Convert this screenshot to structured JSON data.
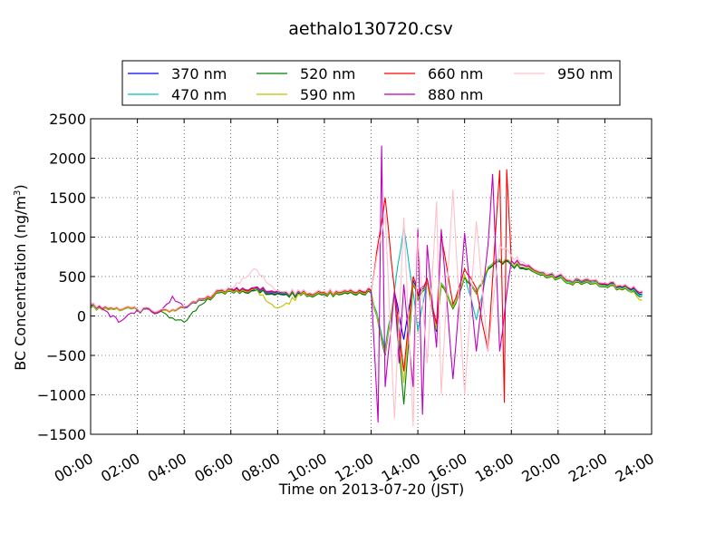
{
  "chart_data": {
    "type": "line",
    "title": "aethalo130720.csv",
    "xlabel": "Time on 2013-07-20 (JST)",
    "ylabel": "BC Concentration (ng/m",
    "ylabel_sup": "3",
    "ylabel_tail": ")",
    "xlim": [
      "00:00",
      "24:00"
    ],
    "ylim": [
      -1500,
      2500
    ],
    "x_ticks": [
      "00:00",
      "02:00",
      "04:00",
      "06:00",
      "08:00",
      "10:00",
      "12:00",
      "14:00",
      "16:00",
      "18:00",
      "20:00",
      "22:00",
      "24:00"
    ],
    "y_ticks": [
      "2500",
      "2000",
      "1500",
      "1000",
      "500",
      "0",
      "−500",
      "−1000",
      "−1500"
    ],
    "grid": true,
    "legend_position": "top",
    "x_units": "hours",
    "series": [
      {
        "name": "370 nm",
        "color": "#0000ff",
        "x": [
          0,
          1,
          2,
          3,
          4,
          5,
          6,
          7,
          8,
          9,
          10,
          11,
          12,
          12.6,
          13,
          13.4,
          13.8,
          14,
          14.4,
          14.8,
          15,
          15.5,
          16,
          16.5,
          17,
          17.5,
          18,
          19,
          20,
          21,
          22,
          23,
          23.6
        ],
        "y": [
          120,
          90,
          80,
          70,
          100,
          230,
          320,
          330,
          290,
          270,
          280,
          290,
          300,
          -500,
          300,
          -300,
          450,
          250,
          450,
          -200,
          400,
          100,
          500,
          300,
          600,
          700,
          650,
          560,
          500,
          420,
          400,
          350,
          280
        ]
      },
      {
        "name": "470 nm",
        "color": "#00bfbf",
        "x": [
          0,
          1,
          2,
          3,
          4,
          5,
          6,
          7,
          8,
          9,
          10,
          11,
          12,
          12.6,
          13,
          13.4,
          13.8,
          14,
          14.4,
          14.8,
          15,
          15.5,
          16,
          16.5,
          17,
          17.5,
          18,
          19,
          20,
          21,
          22,
          23,
          23.6
        ],
        "y": [
          110,
          85,
          80,
          75,
          110,
          240,
          330,
          340,
          300,
          280,
          290,
          300,
          310,
          -400,
          320,
          1130,
          300,
          -200,
          480,
          -150,
          420,
          120,
          520,
          -50,
          620,
          720,
          660,
          570,
          490,
          430,
          390,
          340,
          270
        ]
      },
      {
        "name": "520 nm",
        "color": "#007f00",
        "x": [
          0,
          1,
          2,
          3,
          4,
          5,
          6,
          7,
          8,
          9,
          10,
          11,
          12,
          12.6,
          13,
          13.4,
          13.8,
          14,
          14.4,
          14.8,
          15,
          15.5,
          16,
          16.5,
          17,
          17.5,
          18,
          19,
          20,
          21,
          22,
          23,
          23.6
        ],
        "y": [
          100,
          80,
          70,
          60,
          -80,
          220,
          310,
          320,
          280,
          260,
          270,
          280,
          290,
          -450,
          310,
          -1120,
          400,
          200,
          430,
          -180,
          390,
          90,
          490,
          280,
          590,
          690,
          640,
          550,
          470,
          400,
          370,
          320,
          250
        ]
      },
      {
        "name": "590 nm",
        "color": "#bfbf00",
        "x": [
          0,
          1,
          2,
          3,
          4,
          5,
          6,
          7,
          8,
          9,
          10,
          11,
          12,
          12.6,
          13,
          13.4,
          13.8,
          14,
          14.4,
          14.8,
          15,
          15.5,
          16,
          16.5,
          17,
          17.5,
          18,
          19,
          20,
          21,
          22,
          23,
          23.6
        ],
        "y": [
          105,
          82,
          75,
          65,
          105,
          235,
          320,
          340,
          100,
          270,
          285,
          295,
          305,
          -480,
          315,
          -850,
          420,
          220,
          440,
          -170,
          410,
          110,
          510,
          290,
          610,
          710,
          670,
          560,
          480,
          410,
          380,
          330,
          200
        ]
      },
      {
        "name": "660 nm",
        "color": "#ff0000",
        "x": [
          0,
          1,
          2,
          3,
          4,
          5,
          6,
          7,
          8,
          9,
          10,
          11,
          12,
          12.6,
          13,
          13.4,
          13.8,
          14,
          14.4,
          14.8,
          15,
          15.5,
          16,
          16.5,
          17,
          17.5,
          17.7,
          17.8,
          18,
          19,
          20,
          21,
          22,
          23,
          23.6
        ],
        "y": [
          130,
          95,
          85,
          80,
          115,
          250,
          340,
          350,
          310,
          290,
          300,
          310,
          320,
          1500,
          330,
          -700,
          500,
          280,
          470,
          -100,
          1000,
          150,
          600,
          350,
          -450,
          1850,
          -1100,
          1860,
          700,
          580,
          510,
          440,
          410,
          360,
          300
        ]
      },
      {
        "name": "880 nm",
        "color": "#bf00bf",
        "x": [
          0,
          0.5,
          1.2,
          2,
          3,
          3.5,
          4,
          5,
          6,
          7,
          8,
          9,
          10,
          11,
          12,
          12.3,
          12.45,
          12.6,
          13,
          13.2,
          13.4,
          13.8,
          14,
          14.2,
          14.4,
          14.8,
          15,
          15.5,
          16,
          16.5,
          17,
          17.2,
          17.5,
          18,
          19,
          20,
          21,
          22,
          23,
          23.6
        ],
        "y": [
          150,
          90,
          -80,
          80,
          60,
          250,
          110,
          260,
          350,
          360,
          320,
          300,
          310,
          320,
          330,
          -1350,
          2160,
          -900,
          320,
          -600,
          400,
          -900,
          1100,
          -1250,
          900,
          -400,
          1100,
          -800,
          1050,
          -450,
          900,
          1800,
          -450,
          700,
          590,
          520,
          450,
          420,
          370,
          310
        ]
      },
      {
        "name": "950 nm",
        "color": "#ffc0cb",
        "x": [
          0,
          1,
          2,
          3,
          4,
          5,
          6,
          7,
          8,
          9,
          10,
          11,
          12,
          12.6,
          13,
          13.4,
          13.8,
          14,
          14.4,
          14.8,
          15,
          15.5,
          16,
          16.5,
          17,
          17.5,
          18,
          19,
          20,
          21,
          22,
          23,
          23.6
        ],
        "y": [
          140,
          100,
          90,
          85,
          120,
          260,
          350,
          600,
          320,
          300,
          310,
          320,
          340,
          1300,
          -1300,
          1250,
          -1400,
          1000,
          -600,
          1450,
          -1000,
          1600,
          -1000,
          1200,
          -450,
          900,
          760,
          590,
          520,
          450,
          420,
          370,
          320
        ]
      }
    ]
  }
}
